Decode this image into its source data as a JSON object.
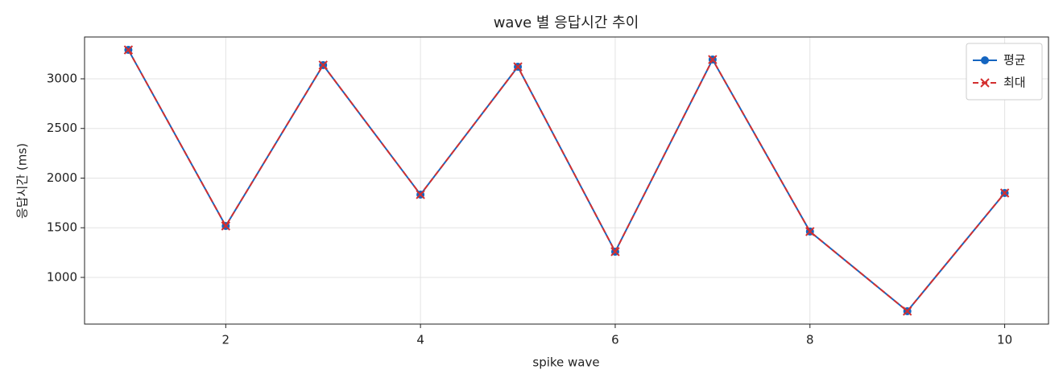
{
  "chart_data": {
    "type": "line",
    "title": "wave 별 응답시간 추이",
    "x_label": "spike wave",
    "y_label": "응답시간 (ms)",
    "x": [
      1,
      2,
      3,
      4,
      5,
      6,
      7,
      8,
      9,
      10
    ],
    "series": [
      {
        "name": "평균",
        "color": "#1565c0",
        "line_style": "solid",
        "marker": "circle",
        "values": [
          3291,
          1518,
          3138,
          1834,
          3121,
          1259,
          3194,
          1462,
          660,
          1850
        ]
      },
      {
        "name": "최대",
        "color": "#d32f2f",
        "line_style": "dashed",
        "marker": "x",
        "values": [
          3291,
          1518,
          3138,
          1834,
          3121,
          1259,
          3194,
          1462,
          660,
          1850
        ]
      }
    ],
    "xlim": [
      0.55,
      10.45
    ],
    "xticks": [
      2,
      4,
      6,
      8,
      10
    ],
    "ylim": [
      530,
      3421
    ],
    "yticks": [
      1000,
      1500,
      2000,
      2500,
      3000
    ],
    "grid": true,
    "legend": "upper right"
  }
}
